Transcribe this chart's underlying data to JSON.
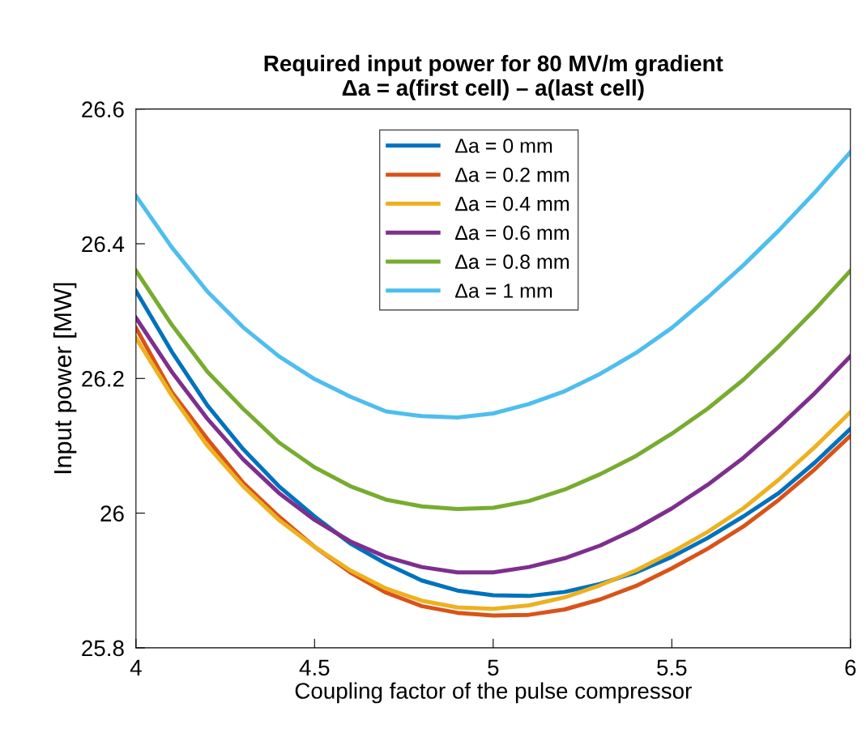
{
  "chart_data": {
    "type": "line",
    "title": "Required input power for 80 MV/m gradient\nΔa = a(first cell) – a(last cell)",
    "xlabel": "Coupling factor of the pulse compressor",
    "ylabel": "Input power [MW]",
    "x": [
      4.0,
      4.1,
      4.2,
      4.3,
      4.4,
      4.5,
      4.6,
      4.7,
      4.8,
      4.9,
      5.0,
      5.1,
      5.2,
      5.3,
      5.4,
      5.5,
      5.6,
      5.7,
      5.8,
      5.9,
      6.0
    ],
    "series": [
      {
        "name": "Δa = 0 mm",
        "color": "#0072bd",
        "values": [
          26.33,
          26.24,
          26.16,
          26.095,
          26.04,
          25.995,
          25.955,
          25.925,
          25.9,
          25.885,
          25.878,
          25.877,
          25.883,
          25.895,
          25.912,
          25.935,
          25.963,
          25.995,
          26.03,
          26.075,
          26.125
        ]
      },
      {
        "name": "Δa = 0.2 mm",
        "color": "#d95319",
        "values": [
          26.275,
          26.18,
          26.11,
          26.045,
          25.995,
          25.95,
          25.912,
          25.882,
          25.862,
          25.852,
          25.848,
          25.849,
          25.857,
          25.872,
          25.892,
          25.918,
          25.947,
          25.98,
          26.02,
          26.065,
          26.115
        ]
      },
      {
        "name": "Δa = 0.4 mm",
        "color": "#edb120",
        "values": [
          26.26,
          26.175,
          26.1,
          26.04,
          25.99,
          25.95,
          25.915,
          25.888,
          25.87,
          25.86,
          25.858,
          25.863,
          25.875,
          25.893,
          25.915,
          25.942,
          25.972,
          26.007,
          26.05,
          26.098,
          26.15
        ]
      },
      {
        "name": "Δa = 0.6 mm",
        "color": "#7e2f8e",
        "values": [
          26.29,
          26.21,
          26.14,
          26.08,
          26.03,
          25.99,
          25.958,
          25.935,
          25.92,
          25.912,
          25.912,
          25.92,
          25.933,
          25.952,
          25.977,
          26.007,
          26.042,
          26.082,
          26.128,
          26.178,
          26.233
        ]
      },
      {
        "name": "Δa = 0.8 mm",
        "color": "#77ac30",
        "values": [
          26.36,
          26.28,
          26.21,
          26.155,
          26.105,
          26.068,
          26.04,
          26.02,
          26.01,
          26.006,
          26.008,
          26.018,
          26.035,
          26.058,
          26.085,
          26.118,
          26.155,
          26.198,
          26.248,
          26.302,
          26.36
        ]
      },
      {
        "name": "Δa = 1 mm",
        "color": "#4dbeee",
        "values": [
          26.471,
          26.395,
          26.329,
          26.276,
          26.233,
          26.199,
          26.173,
          26.151,
          26.144,
          26.142,
          26.148,
          26.162,
          26.181,
          26.207,
          26.238,
          26.275,
          26.32,
          26.368,
          26.42,
          26.476,
          26.536
        ]
      }
    ],
    "xlim": [
      4,
      6
    ],
    "xticks": [
      4,
      4.5,
      5,
      5.5,
      6
    ],
    "ylim": [
      25.8,
      26.6
    ],
    "yticks": [
      25.8,
      26,
      26.2,
      26.4,
      26.6
    ],
    "legend": "top",
    "grid": false,
    "marker": "none",
    "line_style": "solid"
  }
}
